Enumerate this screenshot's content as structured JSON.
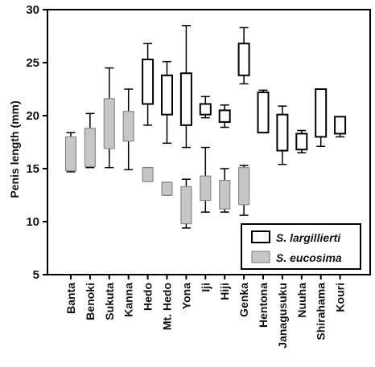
{
  "chart_data": {
    "type": "boxplot",
    "ylabel": "Penis length (mm)",
    "ylim": [
      5,
      30
    ],
    "yticks": [
      5,
      10,
      15,
      20,
      25,
      30
    ],
    "categories": [
      "Banta",
      "Benoki",
      "Sukuta",
      "Kanna",
      "Hedo",
      "Mt. Hedo",
      "Yona",
      "Iji",
      "Hiji",
      "Genka",
      "Hentona",
      "Janagusuku",
      "Nuuha",
      "Shirahama",
      "Kouri"
    ],
    "legend_position": "bottom-right",
    "series": [
      {
        "name": "S. largillierti",
        "color": "#ffffff",
        "boxes": [
          {
            "category": "Hedo",
            "min": 19.1,
            "q1": 21.1,
            "q3": 25.3,
            "max": 26.8
          },
          {
            "category": "Mt. Hedo",
            "min": 17.4,
            "q1": 20.1,
            "q3": 23.8,
            "max": 25.1
          },
          {
            "category": "Yona",
            "min": 17.0,
            "q1": 19.1,
            "q3": 24.0,
            "max": 28.5
          },
          {
            "category": "Iji",
            "min": 19.8,
            "q1": 20.1,
            "q3": 21.1,
            "max": 21.8
          },
          {
            "category": "Hiji",
            "min": 18.9,
            "q1": 19.4,
            "q3": 20.5,
            "max": 21.0
          },
          {
            "category": "Genka",
            "min": 23.0,
            "q1": 23.8,
            "q3": 26.8,
            "max": 28.3
          },
          {
            "category": "Hentona",
            "min": 18.4,
            "q1": 18.4,
            "q3": 22.2,
            "max": 22.4
          },
          {
            "category": "Janagusuku",
            "min": 15.4,
            "q1": 16.7,
            "q3": 20.1,
            "max": 20.9
          },
          {
            "category": "Nuuha",
            "min": 16.5,
            "q1": 16.8,
            "q3": 18.3,
            "max": 18.6
          },
          {
            "category": "Shirahama",
            "min": 17.1,
            "q1": 18.0,
            "q3": 22.5,
            "max": 22.5
          },
          {
            "category": "Kouri",
            "min": 18.0,
            "q1": 18.3,
            "q3": 19.9,
            "max": 19.9
          }
        ]
      },
      {
        "name": "S. eucosima",
        "color": "#c6c6c6",
        "boxes": [
          {
            "category": "Banta",
            "min": 14.7,
            "q1": 14.8,
            "q3": 18.0,
            "max": 18.4
          },
          {
            "category": "Benoki",
            "min": 15.1,
            "q1": 15.2,
            "q3": 18.8,
            "max": 20.2
          },
          {
            "category": "Sukuta",
            "min": 15.1,
            "q1": 16.9,
            "q3": 21.6,
            "max": 24.5
          },
          {
            "category": "Kanna",
            "min": 14.9,
            "q1": 17.6,
            "q3": 20.4,
            "max": 22.5
          },
          {
            "category": "Hedo",
            "min": 13.8,
            "q1": 13.8,
            "q3": 15.1,
            "max": 15.1
          },
          {
            "category": "Mt. Hedo",
            "min": 12.5,
            "q1": 12.5,
            "q3": 13.7,
            "max": 13.7
          },
          {
            "category": "Yona",
            "min": 9.4,
            "q1": 9.8,
            "q3": 13.3,
            "max": 14.0
          },
          {
            "category": "Iji",
            "min": 10.9,
            "q1": 12.0,
            "q3": 14.3,
            "max": 17.0
          },
          {
            "category": "Hiji",
            "min": 10.9,
            "q1": 11.2,
            "q3": 13.9,
            "max": 15.0
          },
          {
            "category": "Genka",
            "min": 10.6,
            "q1": 11.6,
            "q3": 15.1,
            "max": 15.3
          }
        ]
      }
    ]
  }
}
